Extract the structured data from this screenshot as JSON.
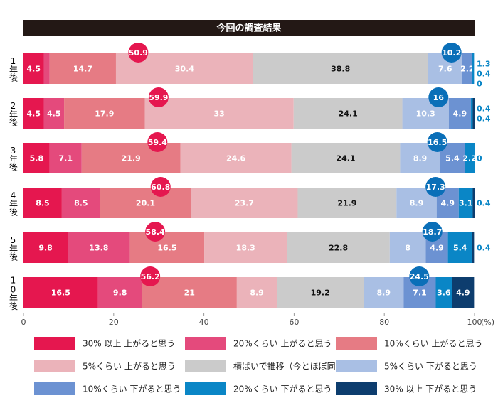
{
  "chart_data": {
    "type": "stacked-bar",
    "title": "今回の調査結果",
    "categories": [
      "1年後",
      "2年後",
      "3年後",
      "4年後",
      "5年後",
      "10年後"
    ],
    "series": [
      {
        "name": "30% 以上 上がると思う",
        "color": "#e5174f",
        "values": [
          4.5,
          4.5,
          5.8,
          8.5,
          9.8,
          16.5
        ]
      },
      {
        "name": "20%くらい 上がると思う",
        "color": "#e44a7c",
        "values": [
          1.3,
          4.5,
          7.1,
          8.5,
          13.8,
          9.8
        ]
      },
      {
        "name": "10%くらい 上がると思う",
        "color": "#e67b84",
        "values": [
          14.7,
          17.9,
          21.9,
          20.1,
          16.5,
          21.0
        ]
      },
      {
        "name": "5%くらい 上がると思う",
        "color": "#ebb3ba",
        "values": [
          30.4,
          33.0,
          24.6,
          23.7,
          18.3,
          8.9
        ]
      },
      {
        "name": "横ばいで推移（今とほぼ同じ）",
        "color": "#cbcbcb",
        "values": [
          38.8,
          24.1,
          24.1,
          21.9,
          22.8,
          19.2
        ]
      },
      {
        "name": "5%くらい 下がると思う",
        "color": "#a9bfe4",
        "values": [
          7.6,
          10.3,
          8.9,
          8.9,
          8.0,
          8.9
        ]
      },
      {
        "name": "10%くらい 下がると思う",
        "color": "#6c92d2",
        "values": [
          2.2,
          4.9,
          5.4,
          4.9,
          4.9,
          7.1
        ]
      },
      {
        "name": "20%くらい 下がると思う",
        "color": "#0a86c6",
        "values": [
          0.4,
          0.4,
          2.2,
          3.1,
          5.4,
          3.6
        ]
      },
      {
        "name": "30% 以上 下がると思う",
        "color": "#0d3d6e",
        "values": [
          0.0,
          0.4,
          0.0,
          0.4,
          0.4,
          4.9
        ]
      }
    ],
    "up_totals": [
      50.9,
      59.9,
      59.4,
      60.8,
      58.4,
      56.2
    ],
    "down_totals": [
      10.2,
      16.0,
      16.5,
      17.3,
      18.7,
      24.5
    ],
    "up_color": "#e5174f",
    "down_color": "#0a6fb8",
    "xlim": [
      0,
      100
    ],
    "xticks": [
      0,
      20,
      40,
      60,
      80,
      100
    ],
    "x_unit": "(%)"
  }
}
